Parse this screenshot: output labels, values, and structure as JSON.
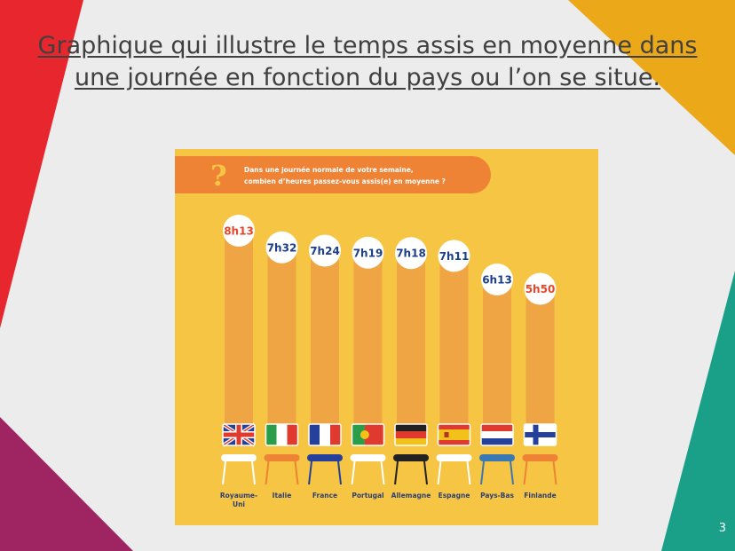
{
  "slide": {
    "title": "Graphique qui illustre le temps assis en moyenne dans une journée en fonction du pays ou l’on se situe.",
    "number": "3"
  },
  "colors": {
    "background": "#ececec",
    "red": "#e8262d",
    "gold": "#eba819",
    "purple": "#9e2562",
    "teal": "#1aa089",
    "panel": "#f6c543",
    "bar": "#efa544",
    "banner": "#ef8335",
    "label_navy": "#1d3f8a",
    "label_orange": "#e8462b"
  },
  "infographic": {
    "question_icon": "question-mark-icon",
    "question_line1": "Dans une journée normale de votre semaine,",
    "question_line2": "combien d’heures passez-vous assis(e) en moyenne ?"
  },
  "chart_data": {
    "type": "bar",
    "categories": [
      "Royaume-Uni",
      "Italie",
      "France",
      "Portugal",
      "Allemagne",
      "Espagne",
      "Pays-Bas",
      "Finlande"
    ],
    "category_labels": [
      [
        "Royaume-",
        "Uni"
      ],
      [
        "Italie"
      ],
      [
        "France"
      ],
      [
        "Portugal"
      ],
      [
        "Allemagne"
      ],
      [
        "Espagne"
      ],
      [
        "Pays-Bas"
      ],
      [
        "Finlande"
      ]
    ],
    "values_minutes": [
      493,
      452,
      444,
      439,
      438,
      431,
      373,
      350
    ],
    "data_labels": [
      "8h13",
      "7h32",
      "7h24",
      "7h19",
      "7h18",
      "7h11",
      "6h13",
      "5h50"
    ],
    "highlight": [
      "Royaume-Uni",
      "Finlande"
    ],
    "flags": [
      {
        "type": "uk"
      },
      {
        "type": "v",
        "colors": [
          "#2a9d4a",
          "#ffffff",
          "#e03a2f"
        ]
      },
      {
        "type": "v",
        "colors": [
          "#24409a",
          "#ffffff",
          "#e03a2f"
        ]
      },
      {
        "type": "pt"
      },
      {
        "type": "h",
        "colors": [
          "#222222",
          "#e03a2f",
          "#f2c21b"
        ]
      },
      {
        "type": "es"
      },
      {
        "type": "h",
        "colors": [
          "#e03a2f",
          "#ffffff",
          "#24409a"
        ]
      },
      {
        "type": "fi"
      }
    ],
    "seat_colors": [
      "#ffffff",
      "#ef8335",
      "#24409a",
      "#ffffff",
      "#222222",
      "#ffffff",
      "#3a78b5",
      "#ef8335"
    ],
    "grid": false,
    "legend": "none"
  }
}
